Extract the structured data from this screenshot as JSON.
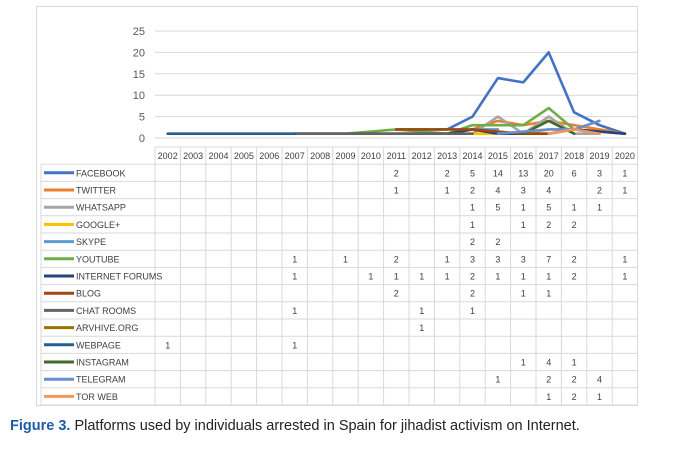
{
  "caption": {
    "label": "Figure 3.",
    "text": "Platforms used by individuals arrested in Spain for jihadist activism on Internet."
  },
  "chart_data": {
    "type": "line",
    "title": "",
    "xlabel": "",
    "ylabel": "",
    "ylim": [
      0,
      25
    ],
    "yticks": [
      0,
      5,
      10,
      15,
      20,
      25
    ],
    "grid": true,
    "legend": "data-table-left",
    "categories": [
      "2002",
      "2003",
      "2004",
      "2005",
      "2006",
      "2007",
      "2008",
      "2009",
      "2010",
      "2011",
      "2012",
      "2013",
      "2014",
      "2015",
      "2016",
      "2017",
      "2018",
      "2019",
      "2020"
    ],
    "series": [
      {
        "name": "FACEBOOK",
        "color": "#4472c4",
        "values": [
          null,
          null,
          null,
          null,
          null,
          null,
          null,
          null,
          null,
          2,
          null,
          2,
          5,
          14,
          13,
          20,
          6,
          3,
          1
        ]
      },
      {
        "name": "TWITTER",
        "color": "#ed7d31",
        "values": [
          null,
          null,
          null,
          null,
          null,
          null,
          null,
          null,
          null,
          1,
          null,
          1,
          2,
          4,
          3,
          4,
          null,
          2,
          1
        ]
      },
      {
        "name": "WHATSAPP",
        "color": "#a5a5a5",
        "values": [
          null,
          null,
          null,
          null,
          null,
          null,
          null,
          null,
          null,
          null,
          null,
          null,
          1,
          5,
          1,
          5,
          1,
          1,
          null
        ]
      },
      {
        "name": "GOOGLE+",
        "color": "#ffc000",
        "values": [
          null,
          null,
          null,
          null,
          null,
          null,
          null,
          null,
          null,
          null,
          null,
          null,
          1,
          null,
          1,
          2,
          2,
          null,
          null
        ]
      },
      {
        "name": "SKYPE",
        "color": "#5b9bd5",
        "values": [
          null,
          null,
          null,
          null,
          null,
          null,
          null,
          null,
          null,
          null,
          null,
          null,
          2,
          2,
          null,
          null,
          null,
          null,
          null
        ]
      },
      {
        "name": "YOUTUBE",
        "color": "#70ad47",
        "values": [
          null,
          null,
          null,
          null,
          null,
          1,
          null,
          1,
          null,
          2,
          null,
          1,
          3,
          3,
          3,
          7,
          2,
          null,
          1
        ]
      },
      {
        "name": "INTERNET FORUMS",
        "color": "#264478",
        "values": [
          null,
          null,
          null,
          null,
          null,
          1,
          null,
          null,
          1,
          1,
          1,
          1,
          2,
          1,
          1,
          1,
          2,
          null,
          1
        ]
      },
      {
        "name": "BLOG",
        "color": "#9e480e",
        "values": [
          null,
          null,
          null,
          null,
          null,
          null,
          null,
          null,
          null,
          2,
          null,
          null,
          2,
          null,
          1,
          1,
          null,
          null,
          null
        ]
      },
      {
        "name": "CHAT ROOMS",
        "color": "#636363",
        "values": [
          null,
          null,
          null,
          null,
          null,
          1,
          null,
          null,
          null,
          null,
          1,
          null,
          1,
          null,
          null,
          null,
          null,
          null,
          null
        ]
      },
      {
        "name": "ARVHIVE.ORG",
        "color": "#997300",
        "values": [
          null,
          null,
          null,
          null,
          null,
          null,
          null,
          null,
          null,
          null,
          1,
          null,
          null,
          null,
          null,
          null,
          null,
          null,
          null
        ]
      },
      {
        "name": "WEBPAGE",
        "color": "#255e91",
        "values": [
          1,
          null,
          null,
          null,
          null,
          1,
          null,
          null,
          null,
          null,
          null,
          null,
          null,
          null,
          null,
          null,
          null,
          null,
          null
        ]
      },
      {
        "name": "INSTAGRAM",
        "color": "#43682b",
        "values": [
          null,
          null,
          null,
          null,
          null,
          null,
          null,
          null,
          null,
          null,
          null,
          null,
          null,
          null,
          1,
          4,
          1,
          null,
          null
        ]
      },
      {
        "name": "TELEGRAM",
        "color": "#698ed0",
        "values": [
          null,
          null,
          null,
          null,
          null,
          null,
          null,
          null,
          null,
          null,
          null,
          null,
          null,
          1,
          null,
          2,
          2,
          4,
          null
        ]
      },
      {
        "name": "TOR WEB",
        "color": "#f1975a",
        "values": [
          null,
          null,
          null,
          null,
          null,
          null,
          null,
          null,
          null,
          null,
          null,
          null,
          null,
          null,
          null,
          1,
          2,
          1,
          null
        ]
      }
    ]
  }
}
